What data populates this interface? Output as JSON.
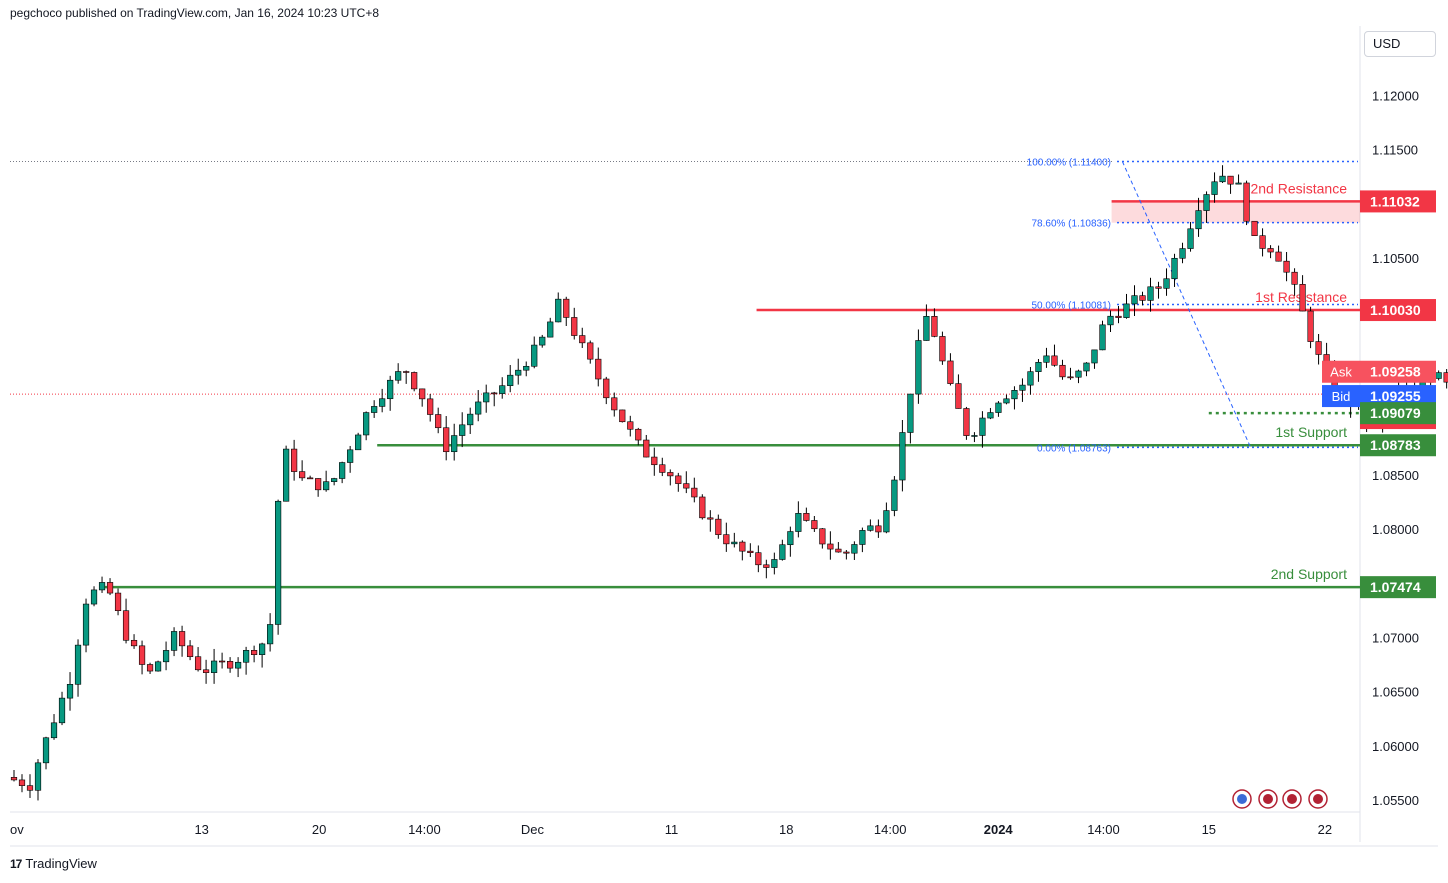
{
  "header": {
    "published": "pegchoco published on TradingView.com, Jan 16, 2024 10:23 UTC+8"
  },
  "footer": {
    "brand": "TradingView",
    "logo_glyph": "17"
  },
  "axis": {
    "currency": "USD"
  },
  "chart_data": {
    "type": "candlestick",
    "y_axis": {
      "ticks": [
        "1.12000",
        "1.11500",
        "1.10500",
        "1.08500",
        "1.08000",
        "1.07000",
        "1.06500",
        "1.06000",
        "1.05500"
      ],
      "tick_values": [
        1.12,
        1.115,
        1.105,
        1.085,
        1.08,
        1.07,
        1.065,
        1.06,
        1.055
      ],
      "range": [
        1.054,
        1.1265
      ]
    },
    "x_axis": {
      "ticks": [
        {
          "label": "ov",
          "pos": 0.0
        },
        {
          "label": "13",
          "pos": 0.142
        },
        {
          "label": "20",
          "pos": 0.229
        },
        {
          "label": "14:00",
          "pos": 0.307
        },
        {
          "label": "Dec",
          "pos": 0.387
        },
        {
          "label": "11",
          "pos": 0.49
        },
        {
          "label": "18",
          "pos": 0.575
        },
        {
          "label": "14:00",
          "pos": 0.652
        },
        {
          "label": "2024",
          "pos": 0.732,
          "bold": true
        },
        {
          "label": "14:00",
          "pos": 0.81
        },
        {
          "label": "15",
          "pos": 0.888
        },
        {
          "label": "22",
          "pos": 0.974
        }
      ]
    },
    "price_labels": [
      {
        "name": "2nd Resistance",
        "label": "1.11032",
        "value": 1.11032,
        "color": "#f23645"
      },
      {
        "name": "1st Resistance",
        "label": "1.10030",
        "value": 1.1003,
        "color": "#f23645"
      },
      {
        "name": "ask",
        "tag": "Ask",
        "label": "1.09258",
        "value": 1.09258,
        "color": "#f7525f"
      },
      {
        "name": "bid",
        "tag": "Bid",
        "label": "1.09255",
        "value": 1.09255,
        "color": "#2962ff"
      },
      {
        "name": "last",
        "label": "1.09255",
        "value": 1.09255,
        "color": "#f23645"
      },
      {
        "name": "pivot",
        "label": "1.09079",
        "value": 1.09079,
        "color": "#388e3c"
      },
      {
        "name": "1st Support",
        "label": "1.08783",
        "value": 1.08783,
        "color": "#388e3c"
      },
      {
        "name": "2nd Support",
        "label": "1.07474",
        "value": 1.07474,
        "color": "#388e3c"
      }
    ],
    "levels": [
      {
        "text": "2nd Resistance",
        "value": 1.11032,
        "color": "#f23645",
        "from": 0.816
      },
      {
        "text": "1st Resistance",
        "value": 1.1003,
        "color": "#f23645",
        "from": 0.553
      },
      {
        "text": "1st Support",
        "value": 1.08783,
        "color": "#388e3c",
        "from": 0.272
      },
      {
        "text": "2nd Support",
        "value": 1.07474,
        "color": "#388e3c",
        "from": 0.066
      }
    ],
    "fibonacci": [
      {
        "text": "100.00% (1.11400)",
        "value": 1.114
      },
      {
        "text": "78.60% (1.10836)",
        "value": 1.10836
      },
      {
        "text": "50.00% (1.10081)",
        "value": 1.10081
      },
      {
        "text": "0.00% (1.08763)",
        "value": 1.08763
      }
    ],
    "fib_color": "#2962ff",
    "fib_start": 0.82,
    "zone": {
      "top": 1.11032,
      "bottom": 1.10836,
      "color": "#f23645"
    },
    "pivot_dotted": {
      "value": 1.09079,
      "from": 0.888,
      "color": "#388e3c"
    },
    "trend_line": {
      "p1": [
        0.824,
        1.114
      ],
      "p2": [
        0.919,
        1.08763
      ]
    },
    "colors": {
      "up": "#089981",
      "down": "#f23645",
      "grid": "#f0f3fa"
    },
    "waypoints": [
      [
        0.0,
        1.0572
      ],
      [
        0.018,
        1.0565
      ],
      [
        0.026,
        1.0595
      ],
      [
        0.048,
        1.0665
      ],
      [
        0.06,
        1.074
      ],
      [
        0.075,
        1.0748
      ],
      [
        0.09,
        1.07
      ],
      [
        0.105,
        1.0665
      ],
      [
        0.125,
        1.0702
      ],
      [
        0.145,
        1.067
      ],
      [
        0.17,
        1.068
      ],
      [
        0.195,
        1.07
      ],
      [
        0.2,
        1.0805
      ],
      [
        0.205,
        1.0875
      ],
      [
        0.22,
        1.0845
      ],
      [
        0.24,
        1.084
      ],
      [
        0.27,
        1.0915
      ],
      [
        0.295,
        1.095
      ],
      [
        0.31,
        1.092
      ],
      [
        0.325,
        1.0875
      ],
      [
        0.345,
        1.091
      ],
      [
        0.37,
        1.0935
      ],
      [
        0.395,
        1.097
      ],
      [
        0.41,
        1.101
      ],
      [
        0.43,
        1.096
      ],
      [
        0.45,
        1.0915
      ],
      [
        0.47,
        1.0875
      ],
      [
        0.49,
        1.0855
      ],
      [
        0.51,
        1.0825
      ],
      [
        0.53,
        1.0795
      ],
      [
        0.555,
        1.077
      ],
      [
        0.57,
        1.077
      ],
      [
        0.585,
        1.0815
      ],
      [
        0.6,
        1.0795
      ],
      [
        0.62,
        1.0775
      ],
      [
        0.635,
        1.08
      ],
      [
        0.648,
        1.0805
      ],
      [
        0.66,
        1.086
      ],
      [
        0.675,
        1.0965
      ],
      [
        0.683,
        1.1002
      ],
      [
        0.698,
        1.0935
      ],
      [
        0.713,
        1.0885
      ],
      [
        0.733,
        1.092
      ],
      [
        0.754,
        1.0935
      ],
      [
        0.77,
        1.0965
      ],
      [
        0.786,
        1.0935
      ],
      [
        0.8,
        1.095
      ],
      [
        0.815,
        1.0995
      ],
      [
        0.835,
        1.101
      ],
      [
        0.855,
        1.1025
      ],
      [
        0.87,
        1.106
      ],
      [
        0.883,
        1.11
      ],
      [
        0.898,
        1.113
      ],
      [
        0.912,
        1.112
      ],
      [
        0.925,
        1.1065
      ],
      [
        0.94,
        1.106
      ],
      [
        0.955,
        1.102
      ],
      [
        0.97,
        1.0965
      ],
      [
        0.985,
        1.0925
      ],
      [
        1.0,
        1.0915
      ],
      [
        1.015,
        1.0895
      ],
      [
        1.03,
        1.093
      ],
      [
        1.04,
        1.0925
      ],
      [
        1.06,
        1.095
      ],
      [
        1.075,
        1.093
      ],
      [
        1.09,
        1.0925
      ],
      [
        1.105,
        1.0915
      ],
      [
        1.12,
        1.0935
      ],
      [
        1.135,
        1.0955
      ],
      [
        1.15,
        1.0955
      ],
      [
        1.162,
        1.0935
      ],
      [
        1.185,
        1.0945
      ],
      [
        1.205,
        1.094
      ],
      [
        1.22,
        1.0935
      ],
      [
        1.232,
        1.0938
      ],
      [
        1.245,
        1.0925
      ]
    ],
    "candle_count": 210
  }
}
